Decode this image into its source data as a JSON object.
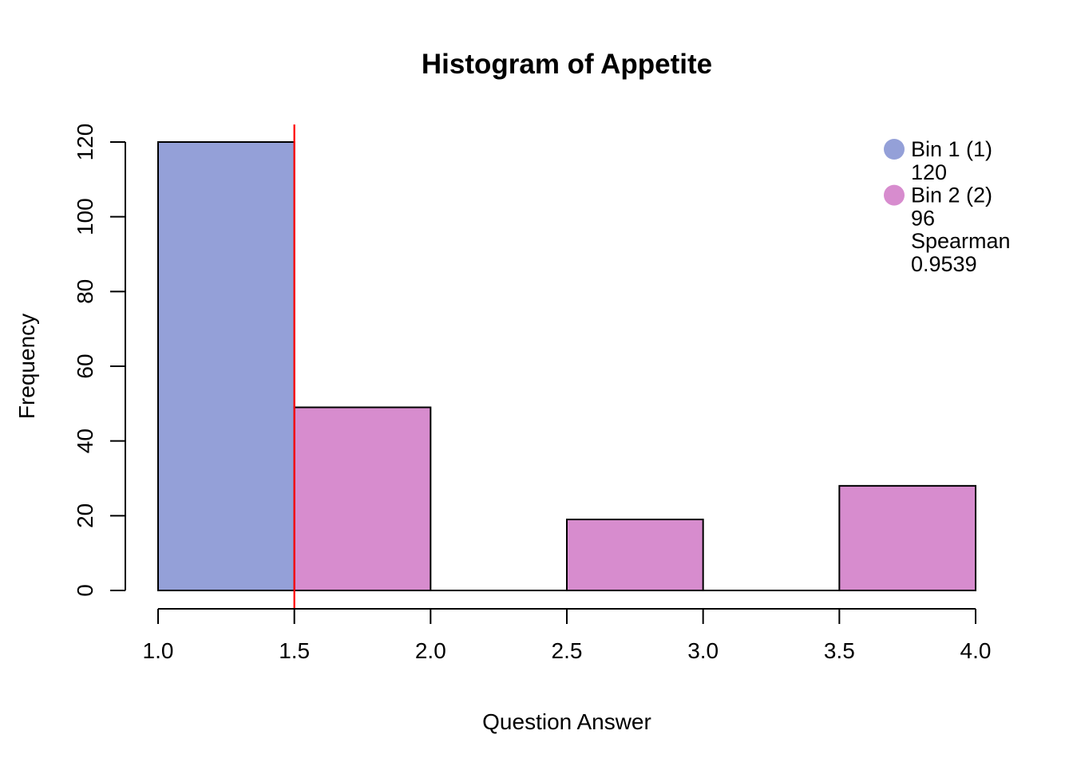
{
  "title": "Histogram of Appetite",
  "colors": {
    "background": "#FFFFFF",
    "bin1_fill": "#94A0D8",
    "bin2_fill": "#D78CCE",
    "bar_stroke": "#000000",
    "axis": "#000000",
    "text": "#000000",
    "marker_line": "#FF0000"
  },
  "chart_data": {
    "type": "bar",
    "subtype": "histogram",
    "title": "Histogram of Appetite",
    "xlabel": "Question Answer",
    "ylabel": "Frequency",
    "xlim": [
      1.0,
      4.0
    ],
    "ylim": [
      0,
      120
    ],
    "x_tick_labels": [
      "1.0",
      "1.5",
      "2.0",
      "2.5",
      "3.0",
      "3.5",
      "4.0"
    ],
    "y_tick_labels": [
      "0",
      "20",
      "40",
      "60",
      "80",
      "100",
      "120"
    ],
    "grid": false,
    "legend_position": "top-right",
    "bars": [
      {
        "from": 1.0,
        "to": 1.5,
        "count": 120,
        "bin": "Bin 1 (1)",
        "fill": "#94A0D8"
      },
      {
        "from": 1.5,
        "to": 2.0,
        "count": 49,
        "bin": "Bin 2 (2)",
        "fill": "#D78CCE"
      },
      {
        "from": 2.0,
        "to": 2.5,
        "count": 0,
        "bin": "Bin 2 (2)",
        "fill": "#D78CCE"
      },
      {
        "from": 2.5,
        "to": 3.0,
        "count": 19,
        "bin": "Bin 2 (2)",
        "fill": "#D78CCE"
      },
      {
        "from": 3.0,
        "to": 3.5,
        "count": 0,
        "bin": "Bin 2 (2)",
        "fill": "#D78CCE"
      },
      {
        "from": 3.5,
        "to": 4.0,
        "count": 28,
        "bin": "Bin 2 (2)",
        "fill": "#D78CCE"
      }
    ],
    "vline": {
      "x": 1.5,
      "color": "#FF0000"
    },
    "stats": {
      "bin1_total": 120,
      "bin2_total": 96,
      "spearman": 0.9539
    }
  },
  "legend": {
    "items": [
      {
        "marker": true,
        "color": "#94A0D8",
        "text": "Bin 1 (1)"
      },
      {
        "marker": false,
        "color": "",
        "text": "120"
      },
      {
        "marker": true,
        "color": "#D78CCE",
        "text": "Bin 2 (2)"
      },
      {
        "marker": false,
        "color": "",
        "text": "96"
      },
      {
        "marker": false,
        "color": "",
        "text": "Spearman"
      },
      {
        "marker": false,
        "color": "",
        "text": "0.9539"
      }
    ]
  }
}
